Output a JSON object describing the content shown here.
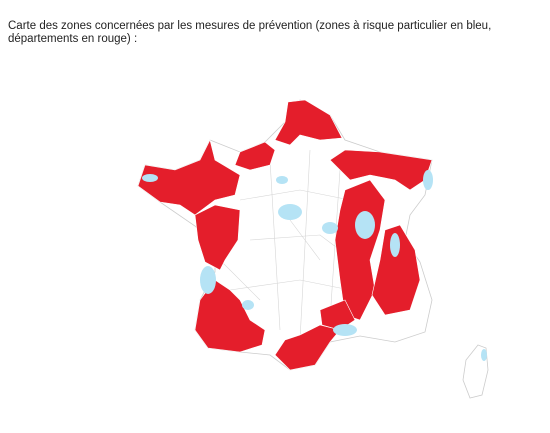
{
  "caption": "Carte des zones concernées par les mesures de prévention (zones à risque particulier en bleu, départements en rouge) :"
}
